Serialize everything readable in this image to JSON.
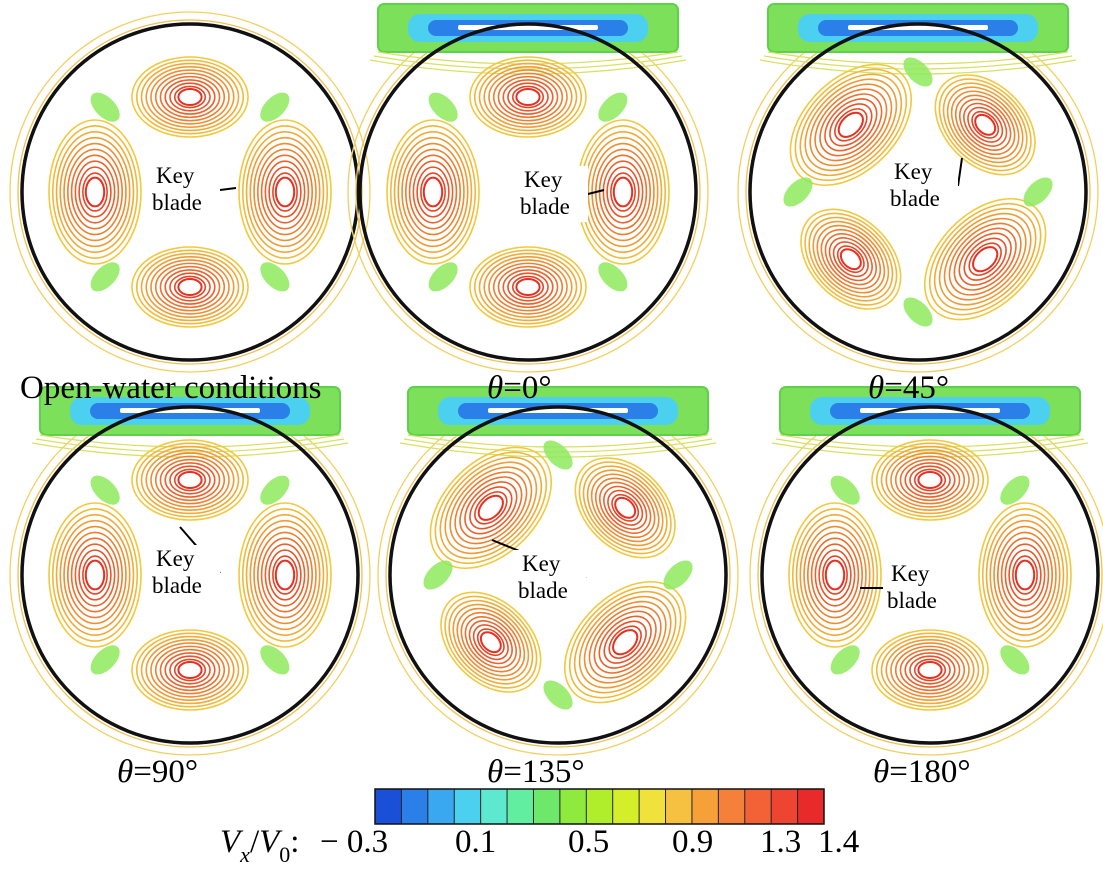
{
  "figure": {
    "panels": [
      {
        "caption": "Open-water conditions",
        "angle": null,
        "key_label": [
          "Key",
          "blade"
        ],
        "duct": false,
        "blade_rotation_deg": 0
      },
      {
        "caption": "=0°",
        "angle": 0,
        "symbol": "θ",
        "key_label": [
          "Key",
          "blade"
        ],
        "duct": true,
        "blade_rotation_deg": 0
      },
      {
        "caption": "=45°",
        "angle": 45,
        "symbol": "θ",
        "key_label": [
          "Key",
          "blade"
        ],
        "duct": true,
        "blade_rotation_deg": 45
      },
      {
        "caption": "=90°",
        "angle": 90,
        "symbol": "θ",
        "key_label": [
          "Key",
          "blade"
        ],
        "duct": true,
        "blade_rotation_deg": 90
      },
      {
        "caption": "=135°",
        "angle": 135,
        "symbol": "θ",
        "key_label": [
          "Key",
          "blade"
        ],
        "duct": true,
        "blade_rotation_deg": 135
      },
      {
        "caption": "=180°",
        "angle": 180,
        "symbol": "θ",
        "key_label": [
          "Key",
          "blade"
        ],
        "duct": true,
        "blade_rotation_deg": 180
      }
    ],
    "colorbar": {
      "label_V": "V",
      "label_sub_x": "x",
      "label_slash": "/",
      "label_V0": "V",
      "label_sub_0": "0",
      "label_colon": ":",
      "ticks": [
        "− 0.3",
        "0.1",
        "0.5",
        "0.9",
        "1.3",
        "1.4"
      ],
      "min": -0.3,
      "max": 1.4,
      "colors": [
        "#1a4fd8",
        "#2a7fe8",
        "#3aa8f0",
        "#4cd0f0",
        "#5de8d0",
        "#62eea0",
        "#6ee86a",
        "#8eea3c",
        "#b0ee2c",
        "#d4ee2a",
        "#f0e23a",
        "#f6c040",
        "#f6a03a",
        "#f4803a",
        "#f26236",
        "#ee4432",
        "#e82a2a"
      ]
    }
  }
}
